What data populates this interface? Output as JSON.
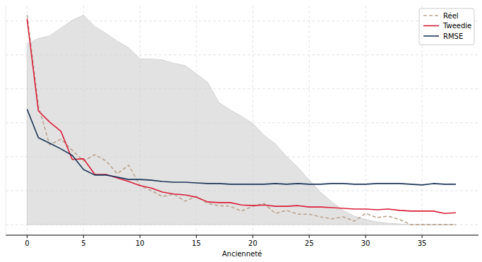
{
  "chart_data": {
    "type": "line",
    "x_label": "Ancienneté",
    "x": [
      0,
      1,
      2,
      3,
      4,
      5,
      6,
      7,
      8,
      9,
      10,
      11,
      12,
      13,
      14,
      15,
      16,
      17,
      18,
      19,
      20,
      21,
      22,
      23,
      24,
      25,
      26,
      27,
      28,
      29,
      30,
      31,
      32,
      33,
      34,
      35,
      36,
      37,
      38
    ],
    "xlim": [
      -1.9,
      40
    ],
    "xticks": [
      0,
      5,
      10,
      15,
      20,
      25,
      30,
      35
    ],
    "ylim": [
      -0.31,
      6.45
    ],
    "yticks": [
      0,
      1,
      2,
      3,
      4,
      5,
      6
    ],
    "grid": true,
    "legend": "upper right",
    "tick_labels": "x",
    "series": [
      {
        "type": "area",
        "color": "#d3d3d3",
        "values": [
          5.33,
          5.48,
          5.56,
          5.79,
          6.02,
          6.17,
          5.83,
          5.63,
          5.4,
          5.21,
          4.88,
          4.88,
          4.85,
          4.75,
          4.69,
          4.44,
          4.19,
          3.6,
          3.38,
          3.19,
          2.98,
          2.63,
          2.38,
          2.0,
          1.69,
          1.31,
          0.96,
          0.67,
          0.42,
          0.25,
          0.15,
          0.08,
          0.04,
          0.02,
          0,
          0,
          0,
          0,
          0
        ]
      },
      {
        "name": "Réel",
        "type": "line",
        "color": "#bba48f",
        "line_style": "dashed",
        "values": [
          6.17,
          3.5,
          2.35,
          2.52,
          2.19,
          1.875,
          2.06,
          1.875,
          1.5,
          1.75,
          1.15,
          1.0,
          0.83,
          0.9,
          0.69,
          0.83,
          0.625,
          0.56,
          0.54,
          0.4,
          0.54,
          0.625,
          0.33,
          0.42,
          0.31,
          0.31,
          0.23,
          0.17,
          0.23,
          0.1,
          0.33,
          0.21,
          0.25,
          0.15,
          0,
          0,
          0,
          0,
          0
        ]
      },
      {
        "name": "Tweedie",
        "type": "line",
        "color": "#d91f3a",
        "line_style": "solid",
        "values": [
          6.06,
          3.35,
          3.02,
          2.75,
          1.92,
          1.94,
          1.48,
          1.48,
          1.375,
          1.27,
          1.15,
          1.08,
          0.96,
          0.9,
          0.875,
          0.81,
          0.67,
          0.65,
          0.65,
          0.58,
          0.56,
          0.58,
          0.54,
          0.54,
          0.56,
          0.52,
          0.52,
          0.5,
          0.48,
          0.46,
          0.46,
          0.44,
          0.46,
          0.42,
          0.4,
          0.4,
          0.4,
          0.33,
          0.35
        ]
      },
      {
        "name": "RMSE",
        "type": "line",
        "color": "#1d3557",
        "line_style": "solid",
        "values": [
          3.4,
          2.56,
          2.4,
          2.23,
          2.04,
          1.625,
          1.46,
          1.46,
          1.4,
          1.33,
          1.33,
          1.31,
          1.27,
          1.25,
          1.25,
          1.23,
          1.21,
          1.21,
          1.19,
          1.19,
          1.19,
          1.19,
          1.21,
          1.19,
          1.21,
          1.19,
          1.19,
          1.21,
          1.21,
          1.19,
          1.19,
          1.21,
          1.21,
          1.21,
          1.19,
          1.17,
          1.21,
          1.19,
          1.19
        ]
      }
    ]
  }
}
